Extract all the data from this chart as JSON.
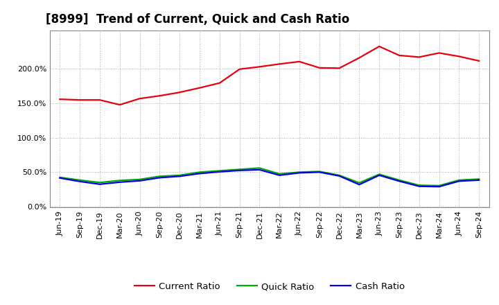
{
  "title": "[8999]  Trend of Current, Quick and Cash Ratio",
  "x_labels": [
    "Jun-19",
    "Sep-19",
    "Dec-19",
    "Mar-20",
    "Jun-20",
    "Sep-20",
    "Dec-20",
    "Mar-21",
    "Jun-21",
    "Sep-21",
    "Dec-21",
    "Mar-22",
    "Jun-22",
    "Sep-22",
    "Dec-22",
    "Mar-23",
    "Jun-23",
    "Sep-23",
    "Dec-23",
    "Mar-24",
    "Jun-24",
    "Sep-24"
  ],
  "current_ratio": [
    1.555,
    1.545,
    1.545,
    1.475,
    1.565,
    1.605,
    1.655,
    1.72,
    1.79,
    1.99,
    2.025,
    2.065,
    2.1,
    2.01,
    2.005,
    2.155,
    2.32,
    2.19,
    2.165,
    2.225,
    2.175,
    2.11
  ],
  "quick_ratio": [
    0.425,
    0.385,
    0.35,
    0.38,
    0.395,
    0.44,
    0.455,
    0.5,
    0.52,
    0.54,
    0.56,
    0.475,
    0.5,
    0.51,
    0.455,
    0.345,
    0.47,
    0.385,
    0.31,
    0.305,
    0.385,
    0.4
  ],
  "cash_ratio": [
    0.415,
    0.365,
    0.325,
    0.355,
    0.375,
    0.42,
    0.44,
    0.48,
    0.505,
    0.525,
    0.535,
    0.455,
    0.49,
    0.5,
    0.445,
    0.32,
    0.455,
    0.37,
    0.295,
    0.29,
    0.37,
    0.385
  ],
  "current_color": "#e8000d",
  "quick_color": "#00a800",
  "cash_color": "#0000e8",
  "bg_color": "#ffffff",
  "plot_bg_color": "#ffffff",
  "grid_color": "#aaaaaa",
  "title_fontsize": 12,
  "legend_fontsize": 9.5,
  "tick_fontsize": 8
}
